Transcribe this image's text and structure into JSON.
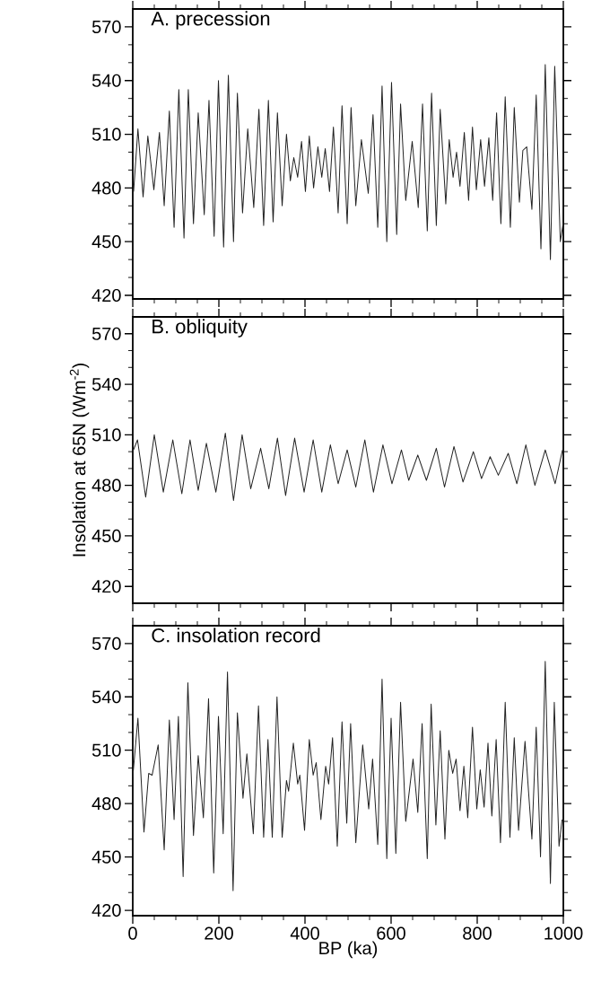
{
  "chart_data": [
    {
      "type": "line",
      "title": "A. precession",
      "xlim": [
        0,
        1000
      ],
      "ylim": [
        418,
        580
      ],
      "xticks": [
        0,
        200,
        400,
        600,
        800,
        1000
      ],
      "yticks": [
        420,
        450,
        480,
        510,
        540,
        570
      ],
      "tick_labels": "y",
      "x": [
        2,
        12,
        24,
        35,
        49,
        62,
        73,
        85,
        96,
        107,
        119,
        129,
        141,
        152,
        166,
        177,
        189,
        199,
        211,
        222,
        234,
        243,
        255,
        267,
        281,
        293,
        304,
        315,
        326,
        336,
        347,
        357,
        366,
        374,
        383,
        392,
        401,
        410,
        420,
        430,
        439,
        447,
        457,
        466,
        477,
        486,
        498,
        507,
        518,
        531,
        547,
        558,
        569,
        579,
        590,
        601,
        613,
        622,
        634,
        649,
        663,
        673,
        684,
        694,
        705,
        714,
        727,
        735,
        744,
        752,
        760,
        770,
        780,
        789,
        798,
        808,
        817,
        827,
        836,
        845,
        855,
        865,
        877,
        886,
        898,
        906,
        915,
        927,
        937,
        948,
        958,
        970,
        980,
        993,
        1000
      ],
      "series": [
        {
          "color": "#222222",
          "values": [
            478,
            513,
            475,
            509,
            479,
            511,
            470,
            523,
            458,
            535,
            452,
            535,
            460,
            522,
            465,
            529,
            453,
            540,
            447,
            543,
            450,
            533,
            466,
            513,
            469,
            524,
            459,
            529,
            461,
            522,
            470,
            510,
            484,
            497,
            486,
            506,
            478,
            509,
            480,
            503,
            486,
            502,
            478,
            514,
            466,
            526,
            460,
            525,
            470,
            507,
            477,
            521,
            458,
            537,
            450,
            539,
            454,
            527,
            473,
            506,
            469,
            527,
            456,
            533,
            459,
            524,
            471,
            507,
            486,
            500,
            481,
            511,
            473,
            514,
            479,
            507,
            481,
            508,
            473,
            522,
            460,
            531,
            458,
            525,
            472,
            501,
            503,
            468,
            532,
            446,
            549,
            440,
            548,
            450,
            461
          ]
        }
      ]
    },
    {
      "type": "line",
      "title": "B. obliquity",
      "ylabel": "Insolation at 65N (Wm$^{-2}$)",
      "xlim": [
        0,
        1000
      ],
      "ylim": [
        410,
        580
      ],
      "xticks": [
        0,
        200,
        400,
        600,
        800,
        1000
      ],
      "yticks": [
        420,
        450,
        480,
        510,
        540,
        570
      ],
      "tick_labels": "y",
      "x": [
        0,
        11,
        30,
        50,
        71,
        93,
        114,
        133,
        152,
        171,
        193,
        215,
        234,
        254,
        274,
        297,
        316,
        336,
        355,
        376,
        398,
        419,
        439,
        459,
        477,
        498,
        518,
        539,
        559,
        581,
        602,
        624,
        641,
        662,
        682,
        705,
        724,
        746,
        767,
        791,
        810,
        830,
        849,
        872,
        892,
        913,
        934,
        958,
        981,
        998
      ],
      "series": [
        {
          "color": "#222222",
          "values": [
            500,
            507,
            473,
            510,
            476,
            507,
            475,
            507,
            477,
            505,
            476,
            511,
            471,
            510,
            478,
            502,
            478,
            508,
            474,
            508,
            476,
            507,
            476,
            504,
            481,
            501,
            479,
            507,
            476,
            504,
            481,
            501,
            483,
            498,
            483,
            502,
            479,
            503,
            482,
            500,
            484,
            497,
            486,
            499,
            481,
            504,
            480,
            501,
            481,
            501
          ]
        }
      ]
    },
    {
      "type": "line",
      "title": "C. insolation record",
      "xlabel": "BP (ka)",
      "xlim": [
        0,
        1000
      ],
      "ylim": [
        417,
        580
      ],
      "xticks": [
        0,
        200,
        400,
        600,
        800,
        1000
      ],
      "yticks": [
        420,
        450,
        480,
        510,
        540,
        570
      ],
      "x": [
        0,
        12,
        26,
        37,
        45,
        59,
        73,
        85,
        96,
        106,
        117,
        128,
        141,
        152,
        164,
        176,
        188,
        199,
        210,
        220,
        233,
        243,
        256,
        265,
        280,
        292,
        304,
        314,
        324,
        335,
        347,
        357,
        362,
        373,
        383,
        388,
        399,
        410,
        419,
        426,
        437,
        448,
        455,
        464,
        475,
        486,
        497,
        506,
        518,
        534,
        548,
        557,
        569,
        579,
        590,
        600,
        611,
        622,
        634,
        651,
        662,
        672,
        684,
        693,
        704,
        714,
        725,
        734,
        743,
        751,
        760,
        769,
        778,
        789,
        799,
        807,
        816,
        825,
        834,
        844,
        854,
        865,
        876,
        886,
        896,
        911,
        927,
        937,
        947,
        958,
        970,
        979,
        990,
        997
      ],
      "series": [
        {
          "color": "#222222",
          "values": [
            495,
            528,
            464,
            497,
            496,
            513,
            454,
            527,
            471,
            529,
            439,
            548,
            462,
            507,
            472,
            539,
            441,
            529,
            463,
            554,
            431,
            531,
            483,
            508,
            463,
            535,
            461,
            516,
            461,
            540,
            461,
            493,
            487,
            514,
            491,
            496,
            465,
            516,
            496,
            503,
            471,
            501,
            491,
            517,
            456,
            526,
            469,
            525,
            458,
            513,
            477,
            505,
            457,
            550,
            449,
            528,
            452,
            537,
            470,
            505,
            475,
            525,
            449,
            536,
            468,
            521,
            460,
            510,
            497,
            505,
            476,
            501,
            472,
            523,
            477,
            499,
            478,
            514,
            473,
            516,
            458,
            537,
            461,
            517,
            465,
            515,
            460,
            523,
            450,
            560,
            435,
            537,
            456,
            471
          ]
        }
      ]
    }
  ]
}
